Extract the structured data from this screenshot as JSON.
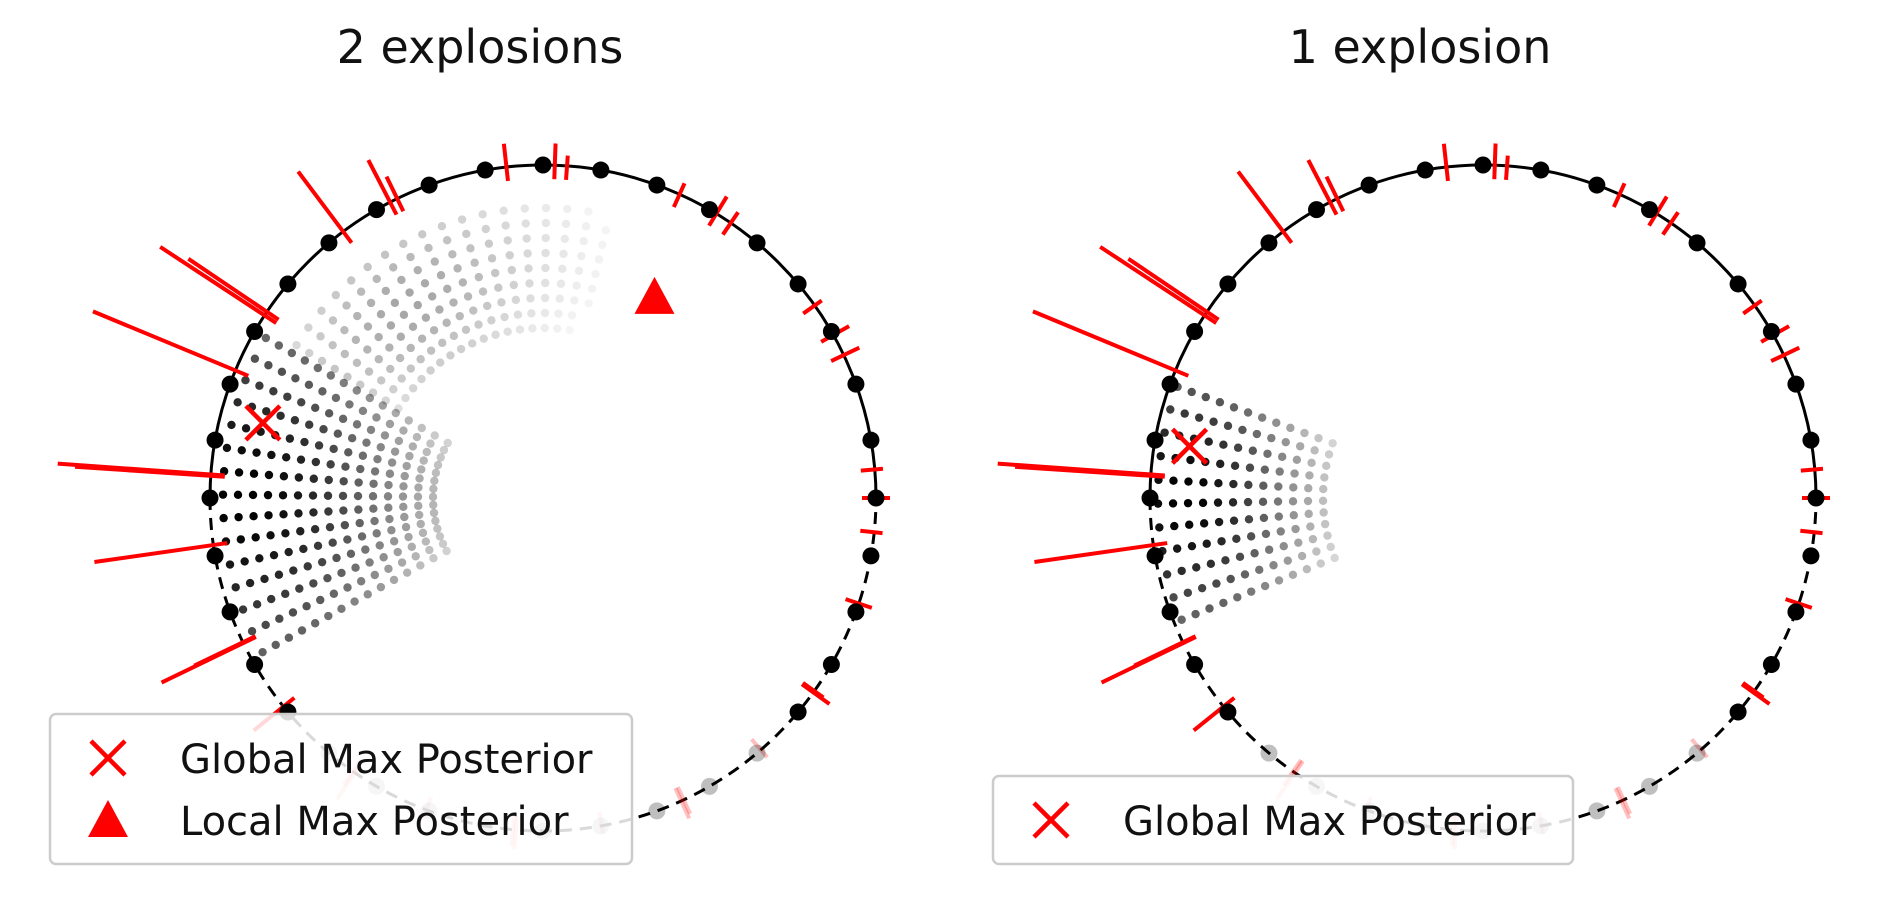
{
  "panels": [
    {
      "title": "2 explosions",
      "legend": [
        {
          "marker": "x",
          "label": "Global Max Posterior",
          "color": "#ff0000"
        },
        {
          "marker": "triangle",
          "label": "Local Max Posterior",
          "color": "#ff0000"
        }
      ]
    },
    {
      "title": "1 explosion",
      "legend": [
        {
          "marker": "x",
          "label": "Global Max Posterior",
          "color": "#ff0000"
        }
      ]
    }
  ],
  "colors": {
    "station": "#000000",
    "arrival": "#ff0000",
    "posterior": "#000000"
  }
}
